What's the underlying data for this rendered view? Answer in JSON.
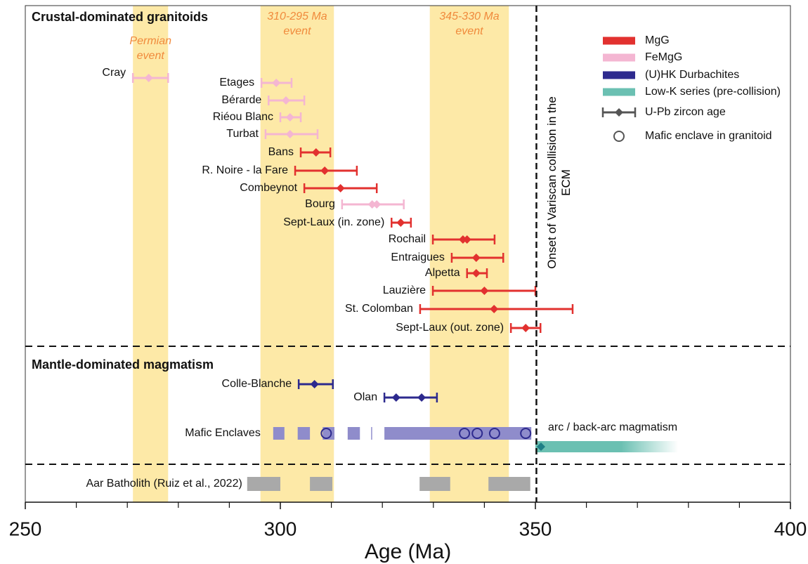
{
  "chart_data": {
    "type": "range",
    "xlabel": "Age (Ma)",
    "xlim": [
      250,
      400
    ],
    "xticks": [
      250,
      300,
      350,
      400
    ],
    "xminor_ticks": [
      260,
      270,
      280,
      290,
      310,
      320,
      330,
      340,
      360,
      370,
      380,
      390
    ],
    "sections": [
      {
        "title": "Crustal-dominated granitoids"
      },
      {
        "title": "Mantle-dominated magmatism"
      }
    ],
    "legend": [
      {
        "name": "MgG",
        "color": "#e2312f"
      },
      {
        "name": "FeMgG",
        "color": "#f4b6d2"
      },
      {
        "name": "(U)HK Durbachites",
        "color": "#2d2a8e"
      },
      {
        "name": "Low-K series (pre-collision)",
        "color": "#6bc0b2"
      }
    ],
    "legend_symbols": [
      "U-Pb zircon age",
      "Mafic enclave in granitoid"
    ],
    "events": [
      {
        "label": "Permian event",
        "range": [
          271.1,
          278.0
        ],
        "color": "#fde9a7"
      },
      {
        "label": "310-295 Ma event",
        "range": [
          296.1,
          310.5
        ],
        "color": "#fde9a7"
      },
      {
        "label": "345-330 Ma event",
        "range": [
          329.3,
          344.8
        ],
        "color": "#fde9a7"
      }
    ],
    "granitoids": [
      {
        "name": "Cray",
        "group": "FeMgG",
        "ages": [
          274.2
        ],
        "range": [
          271.1,
          278.0
        ]
      },
      {
        "name": "Etages",
        "group": "FeMgG",
        "ages": [
          299.2
        ],
        "range": [
          296.3,
          302.2
        ]
      },
      {
        "name": "Bérarde",
        "group": "FeMgG",
        "ages": [
          301.1
        ],
        "range": [
          297.7,
          304.7
        ]
      },
      {
        "name": "Riéou Blanc",
        "group": "FeMgG",
        "ages": [
          301.9
        ],
        "range": [
          300.0,
          304.0
        ]
      },
      {
        "name": "Turbat",
        "group": "FeMgG",
        "ages": [
          301.9
        ],
        "range": [
          297.1,
          307.3
        ]
      },
      {
        "name": "Bans",
        "group": "MgG",
        "ages": [
          307.0
        ],
        "range": [
          304.0,
          309.8
        ]
      },
      {
        "name": "R. Noire - la Fare",
        "group": "MgG",
        "ages": [
          308.7
        ],
        "range": [
          302.9,
          315.0
        ]
      },
      {
        "name": "Combeynot",
        "group": "MgG",
        "ages": [
          311.8
        ],
        "range": [
          304.7,
          318.9
        ]
      },
      {
        "name": "Bourg",
        "group": "FeMgG",
        "ages": [
          318.0,
          318.9
        ],
        "range": [
          312.1,
          324.2
        ]
      },
      {
        "name": "Sept-Laux (in. zone)",
        "group": "MgG",
        "ages": [
          323.6
        ],
        "range": [
          321.8,
          325.6
        ]
      },
      {
        "name": "Rochail",
        "group": "MgG",
        "ages": [
          335.8,
          336.6
        ],
        "range": [
          329.9,
          342.0
        ]
      },
      {
        "name": "Entraigues",
        "group": "MgG",
        "ages": [
          338.4
        ],
        "range": [
          333.6,
          343.7
        ]
      },
      {
        "name": "Alpetta",
        "group": "MgG",
        "ages": [
          338.4
        ],
        "range": [
          336.6,
          340.5
        ]
      },
      {
        "name": "Lauzière",
        "group": "MgG",
        "ages": [
          340.0
        ],
        "range": [
          329.9,
          350.0
        ]
      },
      {
        "name": "St. Colomban",
        "group": "MgG",
        "ages": [
          341.9
        ],
        "range": [
          327.4,
          357.3
        ]
      },
      {
        "name": "Sept-Laux (out. zone)",
        "group": "MgG",
        "ages": [
          348.1
        ],
        "range": [
          345.2,
          351.0
        ]
      }
    ],
    "mantle": [
      {
        "name": "Colle-Blanche",
        "group": "(U)HK Durbachites",
        "ages": [
          306.7
        ],
        "range": [
          303.6,
          310.3
        ]
      },
      {
        "name": "Olan",
        "group": "(U)HK Durbachites",
        "ages": [
          322.7,
          327.7
        ],
        "range": [
          320.4,
          330.7
        ]
      }
    ],
    "mafic_enclaves": {
      "label": "Mafic Enclaves",
      "color": "#8f8ccb",
      "blocks": [
        [
          298.6,
          300.8
        ],
        [
          303.4,
          305.8
        ],
        [
          308.3,
          310.6
        ],
        [
          313.2,
          315.6
        ],
        [
          317.8,
          318.0
        ],
        [
          320.4,
          349.2
        ]
      ],
      "enclaves": [
        309.0,
        336.1,
        338.6,
        342.0,
        348.1
      ]
    },
    "arc": {
      "label": "arc / back-arc magmatism",
      "group": "Low-K series (pre-collision)",
      "range": [
        350.0,
        378.0
      ],
      "ages": [
        351.1
      ]
    },
    "aar": {
      "label": "Aar Batholith (Ruiz et al., 2022)",
      "color": "#a9a9a9",
      "blocks": [
        [
          293.5,
          300.0
        ],
        [
          305.8,
          310.2
        ],
        [
          327.3,
          333.3
        ],
        [
          340.8,
          349.0
        ]
      ]
    },
    "collision": {
      "x": 350.2,
      "label": "Onset of Variscan collision in the ECM"
    }
  }
}
